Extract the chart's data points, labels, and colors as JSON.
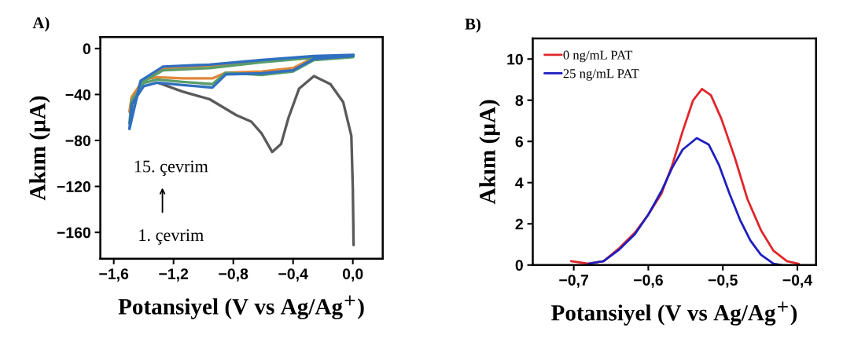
{
  "chart_data": [
    {
      "type": "line",
      "title": "A)",
      "xlabel": "Potansiyel (V vs Ag/Ag$^{+}$)",
      "ylabel": "Akım (µA)",
      "xlim": [
        -1.69,
        0.2
      ],
      "ylim": [
        -183,
        10
      ],
      "xticks": [
        {
          "value": -1.6,
          "label": "−1,6"
        },
        {
          "value": -1.2,
          "label": "−1,2"
        },
        {
          "value": -0.8,
          "label": "−0,8"
        },
        {
          "value": -0.4,
          "label": "−0,4"
        },
        {
          "value": 0.0,
          "label": "0,0"
        }
      ],
      "yticks": [
        {
          "value": 0,
          "label": "0"
        },
        {
          "value": -40,
          "label": "−40"
        },
        {
          "value": -80,
          "label": "−80"
        },
        {
          "value": -120,
          "label": "−120"
        },
        {
          "value": -160,
          "label": "−160"
        }
      ],
      "annotations": [
        "15. çevrim",
        "1. çevrim"
      ],
      "grid": false,
      "legend": false,
      "series": [
        {
          "color": "#5a5a5a",
          "x": [
            -1.3,
            -1.137,
            -0.96,
            -0.78,
            -0.68,
            -0.61,
            -0.54,
            -0.48,
            -0.43,
            -0.36,
            -0.26,
            -0.15,
            -0.065,
            -0.01,
            0.0,
            0.005
          ],
          "values": [
            -30,
            -37.6,
            -44,
            -58,
            -63.6,
            -74,
            -90,
            -83,
            -60,
            -35,
            -24,
            -31,
            -46.5,
            -76,
            -122,
            -171
          ]
        },
        {
          "color": "#e0873a",
          "x": [
            -0.61,
            -0.96,
            -1.27,
            -1.42,
            -1.495,
            -1.48,
            -1.4,
            -1.31,
            -1.14,
            -0.94,
            -0.85,
            -0.61,
            -0.4,
            -0.26,
            0.0
          ],
          "values": [
            -11,
            -15,
            -17,
            -29,
            -55,
            -42,
            -27,
            -25,
            -26,
            -26,
            -21,
            -20,
            -17,
            -8,
            -6
          ]
        },
        {
          "color": "#5a9e6a",
          "x": [
            0.005,
            -0.26,
            -0.61,
            -0.96,
            -1.27,
            -1.42,
            -1.495,
            -1.48,
            -1.4,
            -1.31,
            -1.14,
            -0.94,
            -0.85,
            -0.61,
            -0.4,
            -0.26,
            0.0
          ],
          "values": [
            -7,
            -8,
            -12,
            -17,
            -19,
            -30,
            -65,
            -45,
            -30,
            -27,
            -29,
            -31,
            -21,
            -23,
            -20,
            -10,
            -7.5
          ]
        },
        {
          "color": "#2f6fc0",
          "x": [
            0.005,
            -0.26,
            -0.61,
            -0.96,
            -1.27,
            -1.42,
            -1.495,
            -1.48,
            -1.4,
            -1.31,
            -1.14,
            -0.94,
            -0.85,
            -0.61,
            -0.4,
            -0.26,
            0.0
          ],
          "values": [
            -5.5,
            -6.6,
            -10,
            -14,
            -15.7,
            -28,
            -70,
            -48.6,
            -32.8,
            -29.7,
            -31.8,
            -34,
            -22.5,
            -21.6,
            -19,
            -9,
            -6.5
          ]
        }
      ]
    },
    {
      "type": "line",
      "title": "B)",
      "xlabel": "Potansiyel (V vs Ag/Ag$^{+}$)",
      "ylabel": "Akım (µA)",
      "xlim": [
        -0.755,
        -0.375
      ],
      "ylim": [
        0,
        11
      ],
      "xticks": [
        {
          "value": -0.7,
          "label": "−0,7"
        },
        {
          "value": -0.6,
          "label": "−0,6"
        },
        {
          "value": -0.5,
          "label": "−0,5"
        },
        {
          "value": -0.4,
          "label": "−0,4"
        }
      ],
      "yticks": [
        0,
        2,
        4,
        6,
        8,
        10
      ],
      "grid": false,
      "legend": "top left",
      "series": [
        {
          "name": "0 ng/mL PAT",
          "color": "#e0262a",
          "x": [
            -0.7035,
            -0.68,
            -0.66,
            -0.639,
            -0.618,
            -0.6,
            -0.5825,
            -0.568,
            -0.554,
            -0.54,
            -0.528,
            -0.516,
            -0.502,
            -0.484,
            -0.467,
            -0.449,
            -0.432,
            -0.414,
            -0.398
          ],
          "values": [
            0.19,
            0.06,
            0.19,
            0.82,
            1.57,
            2.45,
            3.46,
            4.84,
            6.48,
            7.99,
            8.55,
            8.24,
            7.1,
            5.22,
            3.2,
            1.7,
            0.69,
            0.19,
            0.06
          ]
        },
        {
          "name": "25 ng/mL PAT",
          "color": "#1f1fc0",
          "x": [
            -0.68,
            -0.66,
            -0.639,
            -0.618,
            -0.6,
            -0.5825,
            -0.568,
            -0.554,
            -0.535,
            -0.519,
            -0.505,
            -0.491,
            -0.477,
            -0.463,
            -0.449,
            -0.432,
            -0.421
          ],
          "values": [
            0.06,
            0.19,
            0.75,
            1.5,
            2.45,
            3.58,
            4.72,
            5.6,
            6.16,
            5.85,
            4.84,
            3.46,
            2.2,
            1.19,
            0.5,
            0.06,
            0.0
          ]
        }
      ]
    }
  ]
}
